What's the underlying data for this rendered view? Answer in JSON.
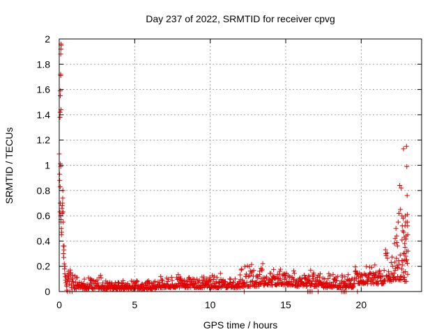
{
  "chart_data": {
    "type": "scatter",
    "title": "Day 237 of 2022, SRMTID for receiver cpvg",
    "xlabel": "GPS time / hours",
    "ylabel": "SRMTID / TECUs",
    "xlim": [
      0,
      24
    ],
    "ylim": [
      0,
      2
    ],
    "x_ticks": [
      0,
      5,
      10,
      15,
      20
    ],
    "y_ticks": [
      0,
      0.2,
      0.4,
      0.6,
      0.8,
      1,
      1.2,
      1.4,
      1.6,
      1.8,
      2
    ],
    "x_tick_labels": [
      "0",
      "5",
      "10",
      "15",
      "20"
    ],
    "y_tick_labels": [
      "0",
      "0.2",
      "0.4",
      "0.6",
      "0.8",
      "1",
      "1.2",
      "1.4",
      "1.6",
      "1.8",
      "2"
    ],
    "grid": true,
    "marker": "+",
    "series": [
      {
        "name": "SRMTID",
        "color": "#e00000",
        "points": [
          [
            0.0,
            1.09
          ],
          [
            0.02,
            0.93
          ],
          [
            0.03,
            0.88
          ],
          [
            0.05,
            1.38
          ],
          [
            0.06,
            1.42
          ],
          [
            0.07,
            1.55
          ],
          [
            0.08,
            1.59
          ],
          [
            0.09,
            1.72
          ],
          [
            0.1,
            1.71
          ],
          [
            0.1,
            1.88
          ],
          [
            0.11,
            1.92
          ],
          [
            0.12,
            1.96
          ],
          [
            0.13,
            1.95
          ],
          [
            0.12,
            1.44
          ],
          [
            0.08,
            1.01
          ],
          [
            0.1,
            0.99
          ],
          [
            0.06,
            0.83
          ],
          [
            0.07,
            0.7
          ],
          [
            0.05,
            0.63
          ],
          [
            0.09,
            0.6
          ],
          [
            0.11,
            0.57
          ],
          [
            0.12,
            0.55
          ],
          [
            0.14,
            0.5
          ],
          [
            0.15,
            0.45
          ],
          [
            0.16,
            0.47
          ],
          [
            0.18,
            0.66
          ],
          [
            0.19,
            0.62
          ],
          [
            0.2,
            0.68
          ],
          [
            0.22,
            0.7
          ],
          [
            0.23,
            0.74
          ],
          [
            0.24,
            0.8
          ],
          [
            0.25,
            0.63
          ],
          [
            0.26,
            0.55
          ],
          [
            0.27,
            0.36
          ],
          [
            0.28,
            0.3
          ],
          [
            0.3,
            0.27
          ],
          [
            0.31,
            0.33
          ],
          [
            0.32,
            0.36
          ],
          [
            0.33,
            0.22
          ],
          [
            0.35,
            0.18
          ],
          [
            0.37,
            0.14
          ],
          [
            0.38,
            0.2
          ],
          [
            0.4,
            0.12
          ],
          [
            0.42,
            0.09
          ],
          [
            0.44,
            0.07
          ],
          [
            0.46,
            0.11
          ],
          [
            0.48,
            0.05
          ],
          [
            0.5,
            0.04
          ],
          [
            0.52,
            0.08
          ],
          [
            0.55,
            0.13
          ],
          [
            0.58,
            0.1
          ],
          [
            0.6,
            0.16
          ],
          [
            0.62,
            0.12
          ],
          [
            0.65,
            0.09
          ],
          [
            0.68,
            0.06
          ],
          [
            0.7,
            0.14
          ],
          [
            0.73,
            0.17
          ],
          [
            0.75,
            0.15
          ],
          [
            0.78,
            0.11
          ],
          [
            0.8,
            0.05
          ],
          [
            0.82,
            0.03
          ],
          [
            0.85,
            0.08
          ],
          [
            0.88,
            0.13
          ],
          [
            0.9,
            0.1
          ],
          [
            0.93,
            0.07
          ],
          [
            0.95,
            0.05
          ],
          [
            0.98,
            0.04
          ],
          [
            0.5,
            0.01
          ],
          [
            0.55,
            0.0
          ],
          [
            0.7,
            0.0
          ],
          [
            0.85,
            0.0
          ],
          [
            22.2,
            0.38
          ],
          [
            22.25,
            0.42
          ],
          [
            22.3,
            0.5
          ],
          [
            22.35,
            0.44
          ],
          [
            22.4,
            0.36
          ],
          [
            22.45,
            0.55
          ],
          [
            22.5,
            0.62
          ],
          [
            22.55,
            0.84
          ],
          [
            22.6,
            0.65
          ],
          [
            22.65,
            0.82
          ],
          [
            22.7,
            0.6
          ],
          [
            22.72,
            0.52
          ],
          [
            22.75,
            0.48
          ],
          [
            22.78,
            0.58
          ],
          [
            22.8,
            1.13
          ],
          [
            22.82,
            0.47
          ],
          [
            22.85,
            0.43
          ],
          [
            22.88,
            0.38
          ],
          [
            22.9,
            0.52
          ],
          [
            22.92,
            0.6
          ],
          [
            22.95,
            0.55
          ],
          [
            22.97,
            0.44
          ],
          [
            23.0,
            1.15
          ],
          [
            23.02,
            0.99
          ],
          [
            23.04,
            0.76
          ],
          [
            23.05,
            0.61
          ],
          [
            23.06,
            0.55
          ],
          [
            23.07,
            0.52
          ],
          [
            23.08,
            0.45
          ],
          [
            22.85,
            0.3
          ],
          [
            22.88,
            0.25
          ],
          [
            22.9,
            0.35
          ],
          [
            22.95,
            0.28
          ],
          [
            23.0,
            0.32
          ],
          [
            12.25,
            0.0
          ],
          [
            16.45,
            0.0
          ],
          [
            16.55,
            0.0
          ],
          [
            16.65,
            0.0
          ],
          [
            16.75,
            0.0
          ],
          [
            17.15,
            0.0
          ],
          [
            18.7,
            0.0
          ],
          [
            18.8,
            0.0
          ],
          [
            18.9,
            0.0
          ],
          [
            19.0,
            0.0
          ],
          [
            19.75,
            0.0
          ]
        ],
        "bands": [
          {
            "x_start": 1.0,
            "x_end": 3.0,
            "y_low": 0.02,
            "y_high": 0.15
          },
          {
            "x_start": 3.0,
            "x_end": 6.5,
            "y_low": 0.02,
            "y_high": 0.1
          },
          {
            "x_start": 6.5,
            "x_end": 9.0,
            "y_low": 0.03,
            "y_high": 0.14
          },
          {
            "x_start": 9.0,
            "x_end": 12.0,
            "y_low": 0.03,
            "y_high": 0.15
          },
          {
            "x_start": 12.0,
            "x_end": 13.5,
            "y_low": 0.04,
            "y_high": 0.25
          },
          {
            "x_start": 13.5,
            "x_end": 15.5,
            "y_low": 0.05,
            "y_high": 0.2
          },
          {
            "x_start": 15.5,
            "x_end": 17.5,
            "y_low": 0.04,
            "y_high": 0.18
          },
          {
            "x_start": 17.5,
            "x_end": 19.5,
            "y_low": 0.03,
            "y_high": 0.16
          },
          {
            "x_start": 19.5,
            "x_end": 21.5,
            "y_low": 0.06,
            "y_high": 0.22
          },
          {
            "x_start": 21.5,
            "x_end": 23.1,
            "y_low": 0.08,
            "y_high": 0.45
          }
        ]
      }
    ]
  }
}
